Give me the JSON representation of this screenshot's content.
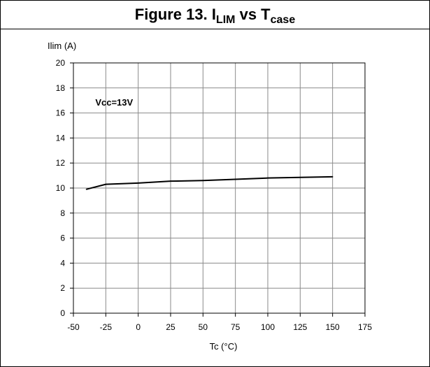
{
  "figure": {
    "title_prefix": "Figure 13. I",
    "title_sub1": "LIM",
    "title_mid": " vs T",
    "title_sub2": "case"
  },
  "chart_data": {
    "type": "line",
    "title": "Figure 13. ILIM vs Tcase",
    "xlabel": "Tc (°C)",
    "ylabel": "Ilim (A)",
    "xlim": [
      -50,
      175
    ],
    "ylim": [
      0,
      20
    ],
    "xticks": [
      -50,
      -25,
      0,
      25,
      50,
      75,
      100,
      125,
      150,
      175
    ],
    "yticks": [
      0,
      2,
      4,
      6,
      8,
      10,
      12,
      14,
      16,
      18,
      20
    ],
    "grid": true,
    "annotations": [
      {
        "text": "Vcc=13V",
        "x": -25,
        "y": 16.6
      }
    ],
    "series": [
      {
        "x": [
          -40,
          -25,
          0,
          25,
          50,
          75,
          100,
          125,
          150
        ],
        "values": [
          9.9,
          10.3,
          10.4,
          10.55,
          10.6,
          10.7,
          10.8,
          10.85,
          10.9
        ]
      }
    ],
    "colors": {
      "line": "#000000",
      "grid": "#8a8a8a",
      "axis": "#000000"
    }
  }
}
